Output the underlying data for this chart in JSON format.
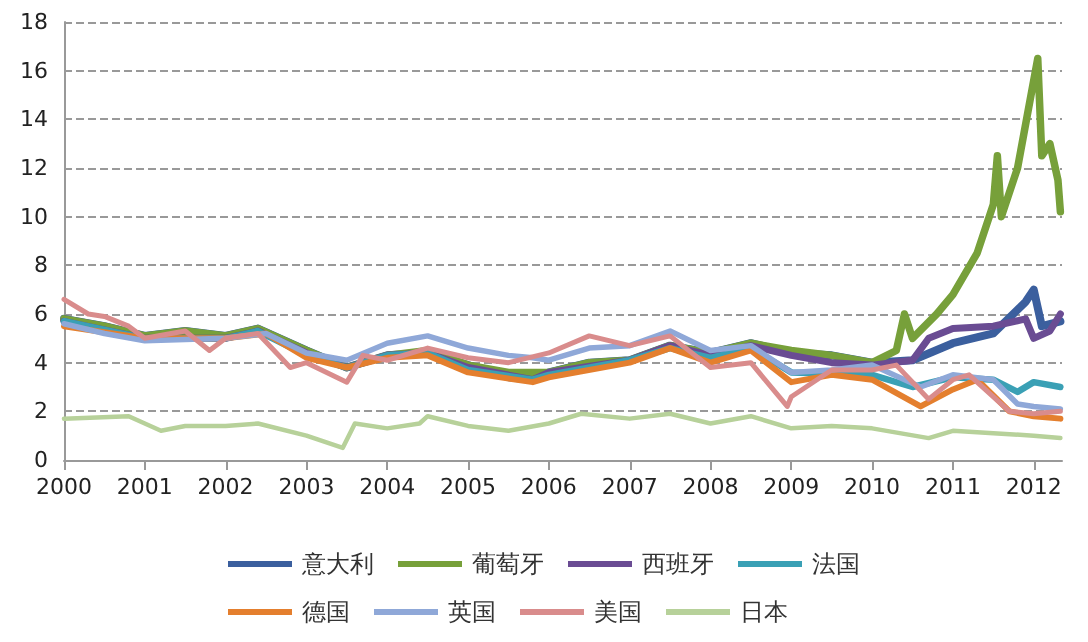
{
  "chart_data": {
    "type": "line",
    "xlim": [
      2000,
      2012.35
    ],
    "xticks": [
      2000,
      2001,
      2002,
      2003,
      2004,
      2005,
      2006,
      2007,
      2008,
      2009,
      2010,
      2011,
      2012
    ],
    "ylim": [
      0,
      18
    ],
    "yticks": [
      0,
      2,
      4,
      6,
      8,
      10,
      12,
      14,
      16,
      18
    ],
    "grid": "y",
    "legend": "bottom",
    "marker": "none",
    "line_style": "solid",
    "series": [
      {
        "name": "意大利",
        "color": "#3b5f9e",
        "x": [
          2000,
          2000.5,
          2001,
          2001.5,
          2002,
          2002.4,
          2003,
          2003.5,
          2004,
          2004.5,
          2005,
          2005.5,
          2005.8,
          2006,
          2006.5,
          2007,
          2007.5,
          2008,
          2008.5,
          2009,
          2009.5,
          2010,
          2010.5,
          2011,
          2011.5,
          2011.9,
          2012,
          2012.1,
          2012.33
        ],
        "values": [
          5.8,
          5.5,
          5.1,
          5.3,
          5.1,
          5.4,
          4.5,
          3.8,
          4.3,
          4.4,
          3.9,
          3.4,
          3.3,
          3.6,
          4.0,
          4.1,
          4.7,
          4.4,
          4.8,
          4.4,
          4.3,
          4.0,
          4.1,
          4.8,
          5.2,
          6.5,
          7.0,
          5.5,
          5.7
        ]
      },
      {
        "name": "葡萄牙",
        "color": "#77a03a",
        "x": [
          2000,
          2000.5,
          2001,
          2001.5,
          2002,
          2002.4,
          2003,
          2003.5,
          2004,
          2004.5,
          2005,
          2005.5,
          2006,
          2006.5,
          2007,
          2007.5,
          2008,
          2008.5,
          2009,
          2009.5,
          2010,
          2010.3,
          2010.4,
          2010.5,
          2010.8,
          2011,
          2011.3,
          2011.5,
          2011.55,
          2011.6,
          2011.8,
          2012.05,
          2012.1,
          2012.2,
          2012.3,
          2012.33
        ],
        "values": [
          5.8,
          5.5,
          5.1,
          5.3,
          5.1,
          5.4,
          4.5,
          3.8,
          4.3,
          4.5,
          3.9,
          3.6,
          3.6,
          4.0,
          4.1,
          4.7,
          4.4,
          4.8,
          4.5,
          4.3,
          4.0,
          4.5,
          6.0,
          5.0,
          6.0,
          6.8,
          8.5,
          10.5,
          12.5,
          10.0,
          12.0,
          16.5,
          12.5,
          13.0,
          11.5,
          10.2
        ]
      },
      {
        "name": "西班牙",
        "color": "#6a4c93",
        "x": [
          2000,
          2001,
          2002,
          2002.4,
          2003,
          2003.5,
          2004,
          2004.5,
          2005,
          2005.8,
          2006,
          2007,
          2007.5,
          2008,
          2008.5,
          2009,
          2009.5,
          2010,
          2010.5,
          2010.7,
          2011,
          2011.5,
          2011.9,
          2012,
          2012.2,
          2012.33
        ],
        "values": [
          5.7,
          5.0,
          5.0,
          5.3,
          4.4,
          3.8,
          4.3,
          4.4,
          3.8,
          3.3,
          3.6,
          4.1,
          4.7,
          4.3,
          4.7,
          4.3,
          4.0,
          3.9,
          4.1,
          5.0,
          5.4,
          5.5,
          5.8,
          5.0,
          5.3,
          6.0
        ]
      },
      {
        "name": "法国",
        "color": "#3aa0b5",
        "x": [
          2000,
          2001,
          2002,
          2002.4,
          2003,
          2003.5,
          2004,
          2004.5,
          2005,
          2005.8,
          2006,
          2007,
          2007.5,
          2008,
          2008.5,
          2009,
          2010,
          2010.5,
          2011,
          2011.5,
          2011.8,
          2012,
          2012.33
        ],
        "values": [
          5.7,
          5.0,
          5.0,
          5.3,
          4.3,
          3.8,
          4.3,
          4.4,
          3.7,
          3.3,
          3.5,
          4.1,
          4.6,
          4.2,
          4.6,
          3.6,
          3.5,
          3.0,
          3.4,
          3.3,
          2.8,
          3.2,
          3.0
        ]
      },
      {
        "name": "德国",
        "color": "#e47f2e",
        "x": [
          2000,
          2001,
          2002,
          2002.5,
          2003,
          2003.5,
          2004,
          2004.5,
          2005,
          2005.8,
          2006,
          2007,
          2007.5,
          2008,
          2008.5,
          2009,
          2009.5,
          2010,
          2010.6,
          2011,
          2011.3,
          2011.7,
          2012,
          2012.33
        ],
        "values": [
          5.5,
          5.0,
          5.0,
          5.2,
          4.2,
          3.8,
          4.2,
          4.3,
          3.6,
          3.2,
          3.4,
          4.0,
          4.6,
          4.0,
          4.5,
          3.2,
          3.5,
          3.3,
          2.2,
          2.9,
          3.3,
          2.0,
          1.8,
          1.7
        ]
      },
      {
        "name": "英国",
        "color": "#8fa8d8",
        "x": [
          2000,
          2000.5,
          2001,
          2002,
          2002.5,
          2003,
          2003.5,
          2004,
          2004.5,
          2005,
          2005.5,
          2005.8,
          2006,
          2006.5,
          2007,
          2007.5,
          2008,
          2008.5,
          2009,
          2009.5,
          2010,
          2010.6,
          2011,
          2011.5,
          2011.8,
          2012,
          2012.33
        ],
        "values": [
          5.6,
          5.2,
          4.9,
          5.0,
          5.2,
          4.4,
          4.1,
          4.8,
          5.1,
          4.6,
          4.3,
          4.2,
          4.1,
          4.6,
          4.7,
          5.3,
          4.5,
          4.7,
          3.6,
          3.7,
          3.9,
          3.0,
          3.5,
          3.3,
          2.3,
          2.2,
          2.1
        ]
      },
      {
        "name": "美国",
        "color": "#d98c8c",
        "x": [
          2000,
          2000.3,
          2000.5,
          2000.8,
          2001,
          2001.5,
          2001.8,
          2002,
          2002.4,
          2002.8,
          2003,
          2003.5,
          2003.7,
          2004,
          2004.5,
          2005,
          2005.5,
          2006,
          2006.5,
          2007,
          2007.5,
          2008,
          2008.5,
          2008.95,
          2009,
          2009.5,
          2010,
          2010.3,
          2010.7,
          2011,
          2011.2,
          2011.7,
          2012,
          2012.33
        ],
        "values": [
          6.6,
          6.0,
          5.9,
          5.5,
          5.0,
          5.3,
          4.5,
          5.0,
          5.2,
          3.8,
          4.0,
          3.2,
          4.3,
          4.1,
          4.6,
          4.2,
          4.0,
          4.4,
          5.1,
          4.7,
          5.1,
          3.8,
          4.0,
          2.2,
          2.6,
          3.7,
          3.7,
          3.9,
          2.5,
          3.3,
          3.5,
          2.0,
          1.9,
          2.0
        ]
      },
      {
        "name": "日本",
        "color": "#b7d19a",
        "x": [
          2000,
          2000.8,
          2001.2,
          2001.5,
          2002,
          2002.4,
          2003,
          2003.45,
          2003.6,
          2004,
          2004.4,
          2004.5,
          2005,
          2005.5,
          2006,
          2006.4,
          2007,
          2007.5,
          2008,
          2008.5,
          2009,
          2009.5,
          2010,
          2010.7,
          2011,
          2011.5,
          2012,
          2012.33
        ],
        "values": [
          1.7,
          1.8,
          1.2,
          1.4,
          1.4,
          1.5,
          1.0,
          0.5,
          1.5,
          1.3,
          1.5,
          1.8,
          1.4,
          1.2,
          1.5,
          1.9,
          1.7,
          1.9,
          1.5,
          1.8,
          1.3,
          1.4,
          1.3,
          0.9,
          1.2,
          1.1,
          1.0,
          0.9
        ]
      }
    ]
  }
}
